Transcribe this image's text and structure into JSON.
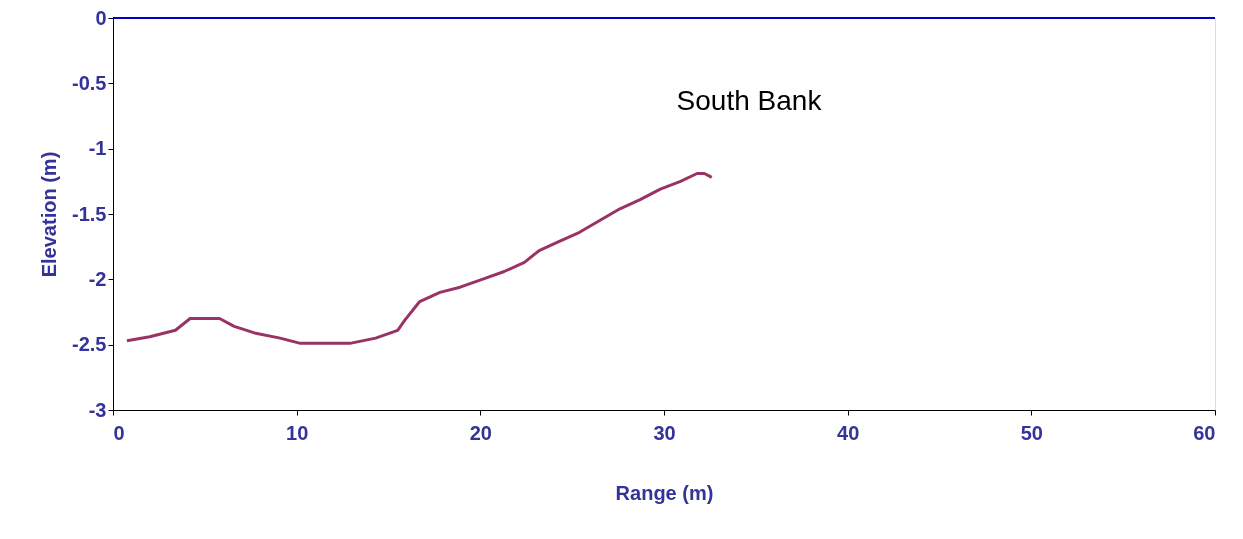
{
  "chart_data": {
    "type": "line",
    "xlabel": "Range (m)",
    "ylabel": "Elevation (m)",
    "annotations": [
      "South Bank"
    ],
    "xlim": [
      0,
      60
    ],
    "xticks": [
      0,
      10,
      20,
      30,
      40,
      50,
      60
    ],
    "ylim": [
      -3,
      0
    ],
    "yticks": [
      -3,
      -2.5,
      -2,
      -1.5,
      -1,
      -0.5,
      0
    ],
    "grid": false,
    "marker": "none",
    "line_style": "solid",
    "ref_lines": [
      {
        "axis": "y",
        "value": 0,
        "color": "#0000cc"
      }
    ],
    "series": [
      {
        "color": "#993366",
        "x": [
          0.76,
          2.0,
          3.4,
          4.2,
          5.8,
          6.6,
          7.7,
          9.1,
          10.2,
          12.9,
          14.3,
          15.5,
          15.9,
          16.7,
          17.8,
          18.9,
          20.1,
          21.3,
          22.4,
          23.2,
          24.3,
          25.4,
          26.5,
          27.6,
          28.7,
          29.8,
          30.9,
          31.8,
          32.2,
          32.6
        ],
        "values": [
          -2.47,
          -2.44,
          -2.39,
          -2.3,
          -2.3,
          -2.36,
          -2.41,
          -2.45,
          -2.49,
          -2.49,
          -2.45,
          -2.39,
          -2.31,
          -2.17,
          -2.1,
          -2.06,
          -2.0,
          -1.94,
          -1.87,
          -1.78,
          -1.71,
          -1.64,
          -1.55,
          -1.46,
          -1.39,
          -1.31,
          -1.25,
          -1.19,
          -1.19,
          -1.22
        ]
      }
    ]
  }
}
